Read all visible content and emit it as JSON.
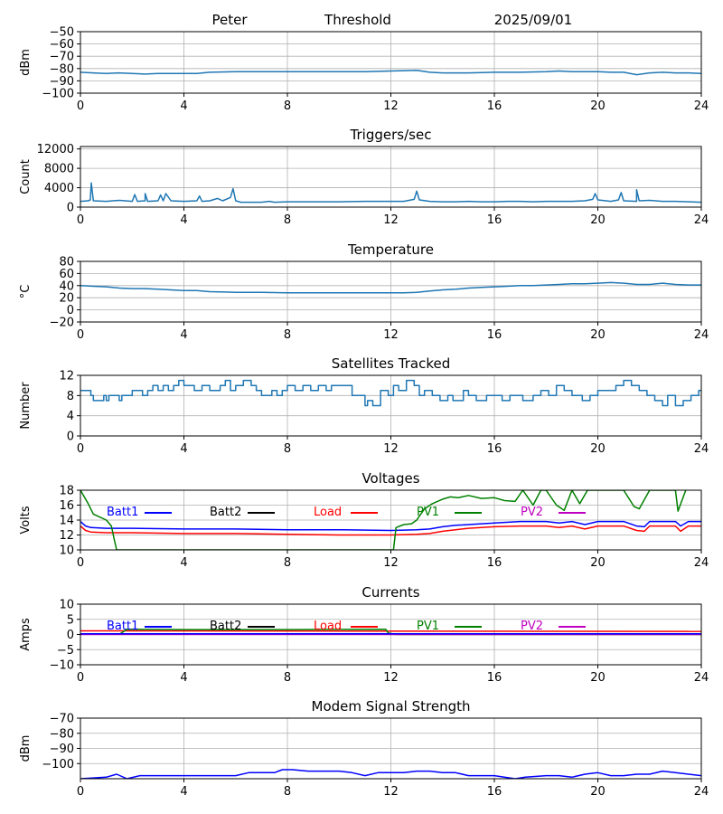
{
  "header": {
    "name": "Peter",
    "mode": "Threshold",
    "date": "2025/09/01"
  },
  "chart_data": [
    {
      "type": "line",
      "title": "",
      "xlabel": "",
      "ylabel": "dBm",
      "xlim": [
        0,
        24
      ],
      "ylim": [
        -100,
        -50
      ],
      "xticks": [
        0,
        4,
        8,
        12,
        16,
        20,
        24
      ],
      "yticks": [
        -100,
        -90,
        -80,
        -70,
        -60,
        -50
      ],
      "grid": true,
      "series": [
        {
          "color": "#1f77b4",
          "x": [
            0,
            0.5,
            1,
            1.5,
            2,
            2.5,
            3,
            3.5,
            4,
            4.5,
            5,
            6,
            7,
            8,
            9,
            10,
            11,
            12,
            13,
            13.5,
            14,
            15,
            16,
            17,
            18,
            18.5,
            19,
            19.5,
            20,
            20.5,
            21,
            21.5,
            22,
            22.5,
            23,
            23.5,
            24
          ],
          "y": [
            -83,
            -83.5,
            -84,
            -83.5,
            -84,
            -84.5,
            -84,
            -84,
            -84,
            -84,
            -83,
            -82.5,
            -82.5,
            -82.5,
            -82.5,
            -82.5,
            -82.5,
            -82,
            -81.5,
            -83,
            -83.5,
            -83.5,
            -83,
            -83,
            -82.5,
            -82,
            -82.5,
            -82.5,
            -82.5,
            -83,
            -83,
            -85,
            -83.5,
            -83,
            -83.5,
            -83.5,
            -84
          ]
        }
      ]
    },
    {
      "type": "line",
      "title": "Triggers/sec",
      "xlabel": "",
      "ylabel": "Count",
      "xlim": [
        0,
        24
      ],
      "ylim": [
        0,
        12500
      ],
      "xticks": [
        0,
        4,
        8,
        12,
        16,
        20,
        24
      ],
      "yticks": [
        0,
        4000,
        8000,
        12000
      ],
      "grid": true,
      "series": [
        {
          "color": "#1f77b4",
          "x": [
            0,
            0.3,
            0.38,
            0.42,
            0.5,
            1,
            1.5,
            2,
            2.1,
            2.2,
            2.5,
            2.5,
            2.6,
            3,
            3.1,
            3.2,
            3.3,
            3.5,
            4,
            4.5,
            4.6,
            4.7,
            5,
            5.3,
            5.5,
            5.8,
            5.9,
            6,
            6.2,
            6.5,
            7,
            7.3,
            7.5,
            8,
            9,
            10,
            11,
            11.5,
            12,
            12.5,
            12.9,
            13,
            13.1,
            13.5,
            14,
            14.5,
            15,
            15.5,
            16,
            16.5,
            17,
            17.5,
            18,
            18.5,
            19,
            19.5,
            19.8,
            19.9,
            20,
            20.5,
            20.8,
            20.9,
            21,
            21.5,
            21.5,
            21.6,
            22,
            22.5,
            23,
            23.5,
            24
          ],
          "y": [
            1200,
            1300,
            1500,
            5000,
            1300,
            1200,
            1400,
            1200,
            2600,
            1200,
            1300,
            2800,
            1200,
            1300,
            2500,
            1300,
            2800,
            1300,
            1200,
            1300,
            2300,
            1200,
            1300,
            1800,
            1300,
            2000,
            3800,
            1300,
            1000,
            1000,
            1000,
            1200,
            1000,
            1100,
            1100,
            1100,
            1200,
            1200,
            1200,
            1200,
            1600,
            3300,
            1500,
            1200,
            1100,
            1100,
            1200,
            1100,
            1100,
            1200,
            1200,
            1100,
            1200,
            1200,
            1200,
            1300,
            1600,
            2800,
            1500,
            1200,
            1500,
            3000,
            1300,
            1200,
            3600,
            1300,
            1400,
            1200,
            1200,
            1100,
            1000
          ]
        }
      ]
    },
    {
      "type": "line",
      "title": "Temperature",
      "xlabel": "",
      "ylabel": "°C",
      "xlim": [
        0,
        24
      ],
      "ylim": [
        -20,
        80
      ],
      "xticks": [
        0,
        4,
        8,
        12,
        16,
        20,
        24
      ],
      "yticks": [
        -20,
        0,
        20,
        40,
        60,
        80
      ],
      "grid": true,
      "series": [
        {
          "color": "#1f77b4",
          "x": [
            0,
            0.5,
            1,
            1.5,
            2,
            2.5,
            3,
            3.5,
            4,
            4.5,
            5,
            6,
            7,
            8,
            9,
            10,
            11,
            12,
            12.5,
            13,
            13.5,
            14,
            14.5,
            15,
            15.5,
            16,
            16.5,
            17,
            17.5,
            18,
            18.5,
            19,
            19.5,
            20,
            20.5,
            21,
            21.5,
            22,
            22.5,
            23,
            23.5,
            24
          ],
          "y": [
            40,
            39,
            38,
            36,
            35,
            35,
            34,
            33,
            32,
            32,
            30,
            29,
            29,
            28,
            28,
            28,
            28,
            28,
            28,
            29,
            31,
            33,
            34,
            36,
            37,
            38,
            39,
            40,
            40,
            41,
            42,
            43,
            43,
            44,
            45,
            44,
            42,
            42,
            44,
            42,
            41,
            41
          ]
        }
      ]
    },
    {
      "type": "line",
      "title": "Satellites Tracked",
      "xlabel": "",
      "ylabel": "Number",
      "xlim": [
        0,
        24
      ],
      "ylim": [
        0,
        12
      ],
      "xticks": [
        0,
        4,
        8,
        12,
        16,
        20,
        24
      ],
      "yticks": [
        0,
        4,
        8,
        12
      ],
      "grid": true,
      "series": [
        {
          "color": "#1f77b4",
          "step": true,
          "x": [
            0,
            0.4,
            0.5,
            0.9,
            1.0,
            1.1,
            1.5,
            1.6,
            1.8,
            2.0,
            2.4,
            2.6,
            2.8,
            3.0,
            3.2,
            3.4,
            3.6,
            3.8,
            4.0,
            4.4,
            4.7,
            5.0,
            5.4,
            5.6,
            5.8,
            6.0,
            6.3,
            6.6,
            6.8,
            7.0,
            7.4,
            7.6,
            7.8,
            8.0,
            8.3,
            8.6,
            8.9,
            9.2,
            9.5,
            9.7,
            10.0,
            10.5,
            11.0,
            11.1,
            11.3,
            11.6,
            11.9,
            12.1,
            12.3,
            12.6,
            12.9,
            13.1,
            13.3,
            13.6,
            13.9,
            14.2,
            14.4,
            14.8,
            15.0,
            15.3,
            15.7,
            16.0,
            16.3,
            16.6,
            16.9,
            17.1,
            17.5,
            17.8,
            18.1,
            18.4,
            18.7,
            19.0,
            19.4,
            19.7,
            20.0,
            20.4,
            20.7,
            21.0,
            21.3,
            21.6,
            21.9,
            22.2,
            22.5,
            22.7,
            23.0,
            23.3,
            23.6,
            23.9,
            24.0
          ],
          "y": [
            9,
            8,
            7,
            8,
            7,
            8,
            7,
            8,
            8,
            9,
            8,
            9,
            10,
            9,
            10,
            9,
            10,
            11,
            10,
            9,
            10,
            9,
            10,
            11,
            9,
            10,
            11,
            10,
            9,
            8,
            9,
            8,
            9,
            10,
            9,
            10,
            9,
            10,
            9,
            10,
            10,
            8,
            6,
            7,
            6,
            9,
            8,
            10,
            9,
            11,
            10,
            8,
            9,
            8,
            7,
            8,
            7,
            9,
            8,
            7,
            8,
            8,
            7,
            8,
            8,
            7,
            8,
            9,
            8,
            10,
            9,
            8,
            7,
            8,
            9,
            9,
            10,
            11,
            10,
            9,
            8,
            7,
            6,
            8,
            6,
            7,
            8,
            9,
            9
          ]
        }
      ]
    },
    {
      "type": "line",
      "title": "Voltages",
      "xlabel": "",
      "ylabel": "Volts",
      "xlim": [
        0,
        24
      ],
      "ylim": [
        10,
        18
      ],
      "xticks": [
        0,
        4,
        8,
        12,
        16,
        20,
        24
      ],
      "yticks": [
        10,
        12,
        14,
        16,
        18
      ],
      "grid": true,
      "legend": [
        "Batt1",
        "Batt2",
        "Load",
        "PV1",
        "PV2"
      ],
      "series": [
        {
          "name": "Batt1",
          "color": "#0000ff",
          "x": [
            0,
            0.2,
            0.4,
            1,
            2,
            4,
            6,
            8,
            10,
            12,
            13,
            13.5,
            14,
            14.5,
            15,
            16,
            17,
            18,
            18.5,
            19,
            19.5,
            20,
            21,
            21.5,
            21.8,
            22,
            23,
            23.2,
            23.5,
            24
          ],
          "y": [
            13.8,
            13.2,
            13,
            12.9,
            12.9,
            12.8,
            12.8,
            12.7,
            12.7,
            12.6,
            12.7,
            12.8,
            13.1,
            13.3,
            13.4,
            13.6,
            13.8,
            13.8,
            13.6,
            13.8,
            13.4,
            13.8,
            13.8,
            13.2,
            13.1,
            13.8,
            13.8,
            13.2,
            13.8,
            13.8
          ]
        },
        {
          "name": "Load",
          "color": "#ff0000",
          "x": [
            0,
            0.2,
            0.4,
            1,
            2,
            4,
            6,
            8,
            10,
            12,
            13,
            13.5,
            14,
            14.5,
            15,
            16,
            17,
            18,
            18.5,
            19,
            19.5,
            20,
            21,
            21.5,
            21.8,
            22,
            23,
            23.2,
            23.5,
            24
          ],
          "y": [
            13.2,
            12.6,
            12.4,
            12.3,
            12.3,
            12.2,
            12.2,
            12.1,
            12.0,
            12.0,
            12.1,
            12.2,
            12.5,
            12.7,
            12.9,
            13.1,
            13.2,
            13.2,
            13.0,
            13.2,
            12.8,
            13.2,
            13.2,
            12.6,
            12.5,
            13.2,
            13.2,
            12.5,
            13.2,
            13.2
          ]
        },
        {
          "name": "PV1",
          "color": "#008000",
          "x": [
            0,
            0.3,
            0.5,
            1,
            1.2,
            1.3,
            1.4,
            12.1,
            12.2,
            12.5,
            12.8,
            13,
            13.3,
            13.6,
            14,
            14.3,
            14.6,
            15,
            15.5,
            16,
            16.4,
            16.8,
            17.1,
            17.5,
            17.8,
            18,
            18.4,
            18.7,
            19,
            19.3,
            19.6,
            21,
            21.4,
            21.6,
            22,
            23,
            23.1,
            23.4
          ],
          "y": [
            18,
            16.2,
            14.8,
            14.0,
            13.2,
            11.5,
            10,
            10,
            13,
            13.4,
            13.5,
            14.0,
            15.5,
            16.2,
            16.8,
            17.1,
            17.0,
            17.3,
            16.9,
            17.0,
            16.6,
            16.5,
            18,
            16,
            18,
            18,
            16,
            15.3,
            18,
            16.2,
            18,
            18,
            15.8,
            15.5,
            18,
            18,
            15.2,
            18
          ]
        }
      ]
    },
    {
      "type": "line",
      "title": "Currents",
      "xlabel": "",
      "ylabel": "Amps",
      "xlim": [
        0,
        24
      ],
      "ylim": [
        -10,
        10
      ],
      "xticks": [
        0,
        4,
        8,
        12,
        16,
        20,
        24
      ],
      "yticks": [
        -10,
        -5,
        0,
        5,
        10
      ],
      "grid": true,
      "legend": [
        "Batt1",
        "Batt2",
        "Load",
        "PV1",
        "PV2"
      ],
      "series": [
        {
          "name": "Load",
          "color": "#ff0000",
          "x": [
            0,
            24
          ],
          "y": [
            1.2,
            1.0
          ]
        },
        {
          "name": "PV1",
          "color": "#008000",
          "x": [
            1.5,
            1.8,
            4,
            8,
            11.8,
            11.9,
            12.2,
            24
          ],
          "y": [
            0,
            1.7,
            1.6,
            1.6,
            1.7,
            0.5,
            0,
            0
          ]
        },
        {
          "name": "PV2",
          "color": "#c000c0",
          "x": [
            0,
            24
          ],
          "y": [
            0,
            0
          ]
        },
        {
          "name": "Batt1",
          "color": "#0000ff",
          "x": [
            0,
            24
          ],
          "y": [
            0.2,
            0.2
          ]
        }
      ]
    },
    {
      "type": "line",
      "title": "Modem Signal Strength",
      "xlabel": "",
      "ylabel": "dBm",
      "xlim": [
        0,
        24
      ],
      "ylim": [
        -110,
        -70
      ],
      "xticks": [
        0,
        4,
        8,
        12,
        16,
        20,
        24
      ],
      "yticks": [
        -100,
        -90,
        -80,
        -70
      ],
      "grid": true,
      "series": [
        {
          "color": "#0000ff",
          "x": [
            0,
            1.0,
            1.4,
            1.8,
            2.3,
            2.7,
            3,
            4,
            5,
            6,
            6.5,
            7,
            7.5,
            7.8,
            8.2,
            8.8,
            9.5,
            10,
            10.5,
            11,
            11.5,
            12,
            12.5,
            13,
            13.5,
            14,
            14.5,
            15,
            16,
            16.8,
            17.2,
            18,
            18.5,
            19,
            19.5,
            20,
            20.5,
            21,
            21.5,
            22,
            22.5,
            23,
            24
          ],
          "y": [
            -110,
            -109,
            -107,
            -110,
            -108,
            -108,
            -108,
            -108,
            -108,
            -108,
            -106,
            -106,
            -106,
            -104,
            -104,
            -105,
            -105,
            -105,
            -106,
            -108,
            -106,
            -106,
            -106,
            -105,
            -105,
            -106,
            -106,
            -108,
            -108,
            -110,
            -109,
            -108,
            -108,
            -109,
            -107,
            -106,
            -108,
            -108,
            -107,
            -107,
            -105,
            -106,
            -108
          ]
        }
      ]
    }
  ]
}
